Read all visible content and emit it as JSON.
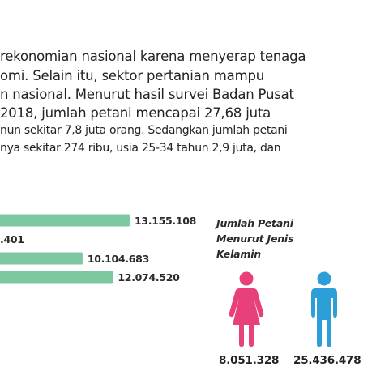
{
  "article": {
    "lines": [
      "rekonomian nasional karena menyerap tenaga",
      "omi. Selain itu, sektor pertanian mampu",
      "n nasional. Menurut hasil survei Badan Pusat",
      " 2018, jumlah petani mencapai 27,68 juta",
      "nun sekitar 7,8 juta orang. Sedangkan jumlah petani",
      "nya sekitar 274 ribu, usia 25-34 tahun 2,9 juta, dan"
    ]
  },
  "chart_data": [
    {
      "type": "bar",
      "orientation": "horizontal",
      "categories": [
        "",
        "",
        "",
        ""
      ],
      "values": [
        13155108,
        null,
        10104683,
        12074520
      ],
      "value_labels": [
        "13.155.108",
        ".401",
        "10.104.683",
        "12.074.520"
      ],
      "bar_color": "#7dc8a0"
    },
    {
      "type": "pictogram",
      "title": "Jumlah Petani Menurut Jenis Kelamin",
      "title_lines": [
        "Jumlah Petani",
        "Menurut Jenis",
        "Kelamin"
      ],
      "categories": [
        "Perempuan",
        "Laki-laki"
      ],
      "icons": [
        "female-icon",
        "male-icon"
      ],
      "values": [
        8051328,
        25436478
      ],
      "value_labels": [
        "8.051.328",
        "25.436.478"
      ],
      "colors": [
        "#e8407a",
        "#2d9fd8"
      ]
    }
  ]
}
